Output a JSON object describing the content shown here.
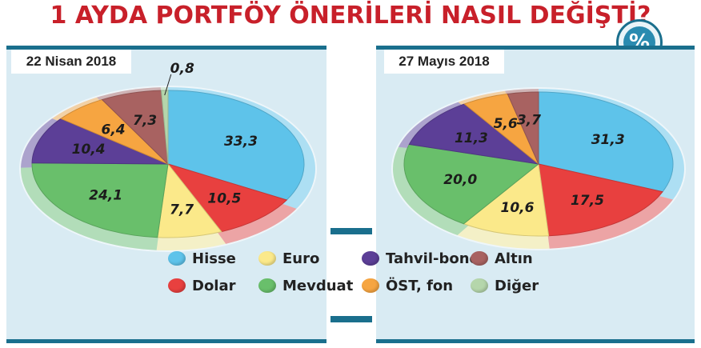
{
  "title": "1 AYDA PORTFÖY ÖNERİLERİ NASIL DEĞİŞTİ?",
  "badge": "%",
  "colors": {
    "Hisse": "#5ec3ea",
    "Dolar": "#e8403f",
    "Euro": "#fbe98a",
    "Mevduat": "#69bf6b",
    "Tahvil-bono": "#5c3f97",
    "ÖST, fon": "#f6a541",
    "Altın": "#a86261",
    "Diğer": "#b5d6ab"
  },
  "legend": {
    "items": [
      "Hisse",
      "Euro",
      "Tahvil-bono",
      "Altın",
      "Dolar",
      "Mevduat",
      "ÖST, fon",
      "Diğer"
    ]
  },
  "chart_data": [
    {
      "type": "pie",
      "title": "22 Nisan 2018",
      "slices": [
        {
          "name": "Hisse",
          "value": 33.3,
          "label": "33,3"
        },
        {
          "name": "Dolar",
          "value": 10.5,
          "label": "10,5"
        },
        {
          "name": "Euro",
          "value": 7.7,
          "label": "7,7"
        },
        {
          "name": "Mevduat",
          "value": 24.1,
          "label": "24,1"
        },
        {
          "name": "Tahvil-bono",
          "value": 10.4,
          "label": "10,4"
        },
        {
          "name": "ÖST, fon",
          "value": 6.4,
          "label": "6,4"
        },
        {
          "name": "Altın",
          "value": 7.3,
          "label": "7,3"
        },
        {
          "name": "Diğer",
          "value": 0.8,
          "label": "0,8"
        }
      ]
    },
    {
      "type": "pie",
      "title": "27 Mayıs 2018",
      "slices": [
        {
          "name": "Hisse",
          "value": 31.3,
          "label": "31,3"
        },
        {
          "name": "Dolar",
          "value": 17.5,
          "label": "17,5"
        },
        {
          "name": "Euro",
          "value": 10.6,
          "label": "10,6"
        },
        {
          "name": "Mevduat",
          "value": 20.0,
          "label": "20,0"
        },
        {
          "name": "Tahvil-bono",
          "value": 11.3,
          "label": "11,3"
        },
        {
          "name": "ÖST, fon",
          "value": 5.6,
          "label": "5,6"
        },
        {
          "name": "Altın",
          "value": 3.7,
          "label": "3,7"
        }
      ]
    }
  ]
}
